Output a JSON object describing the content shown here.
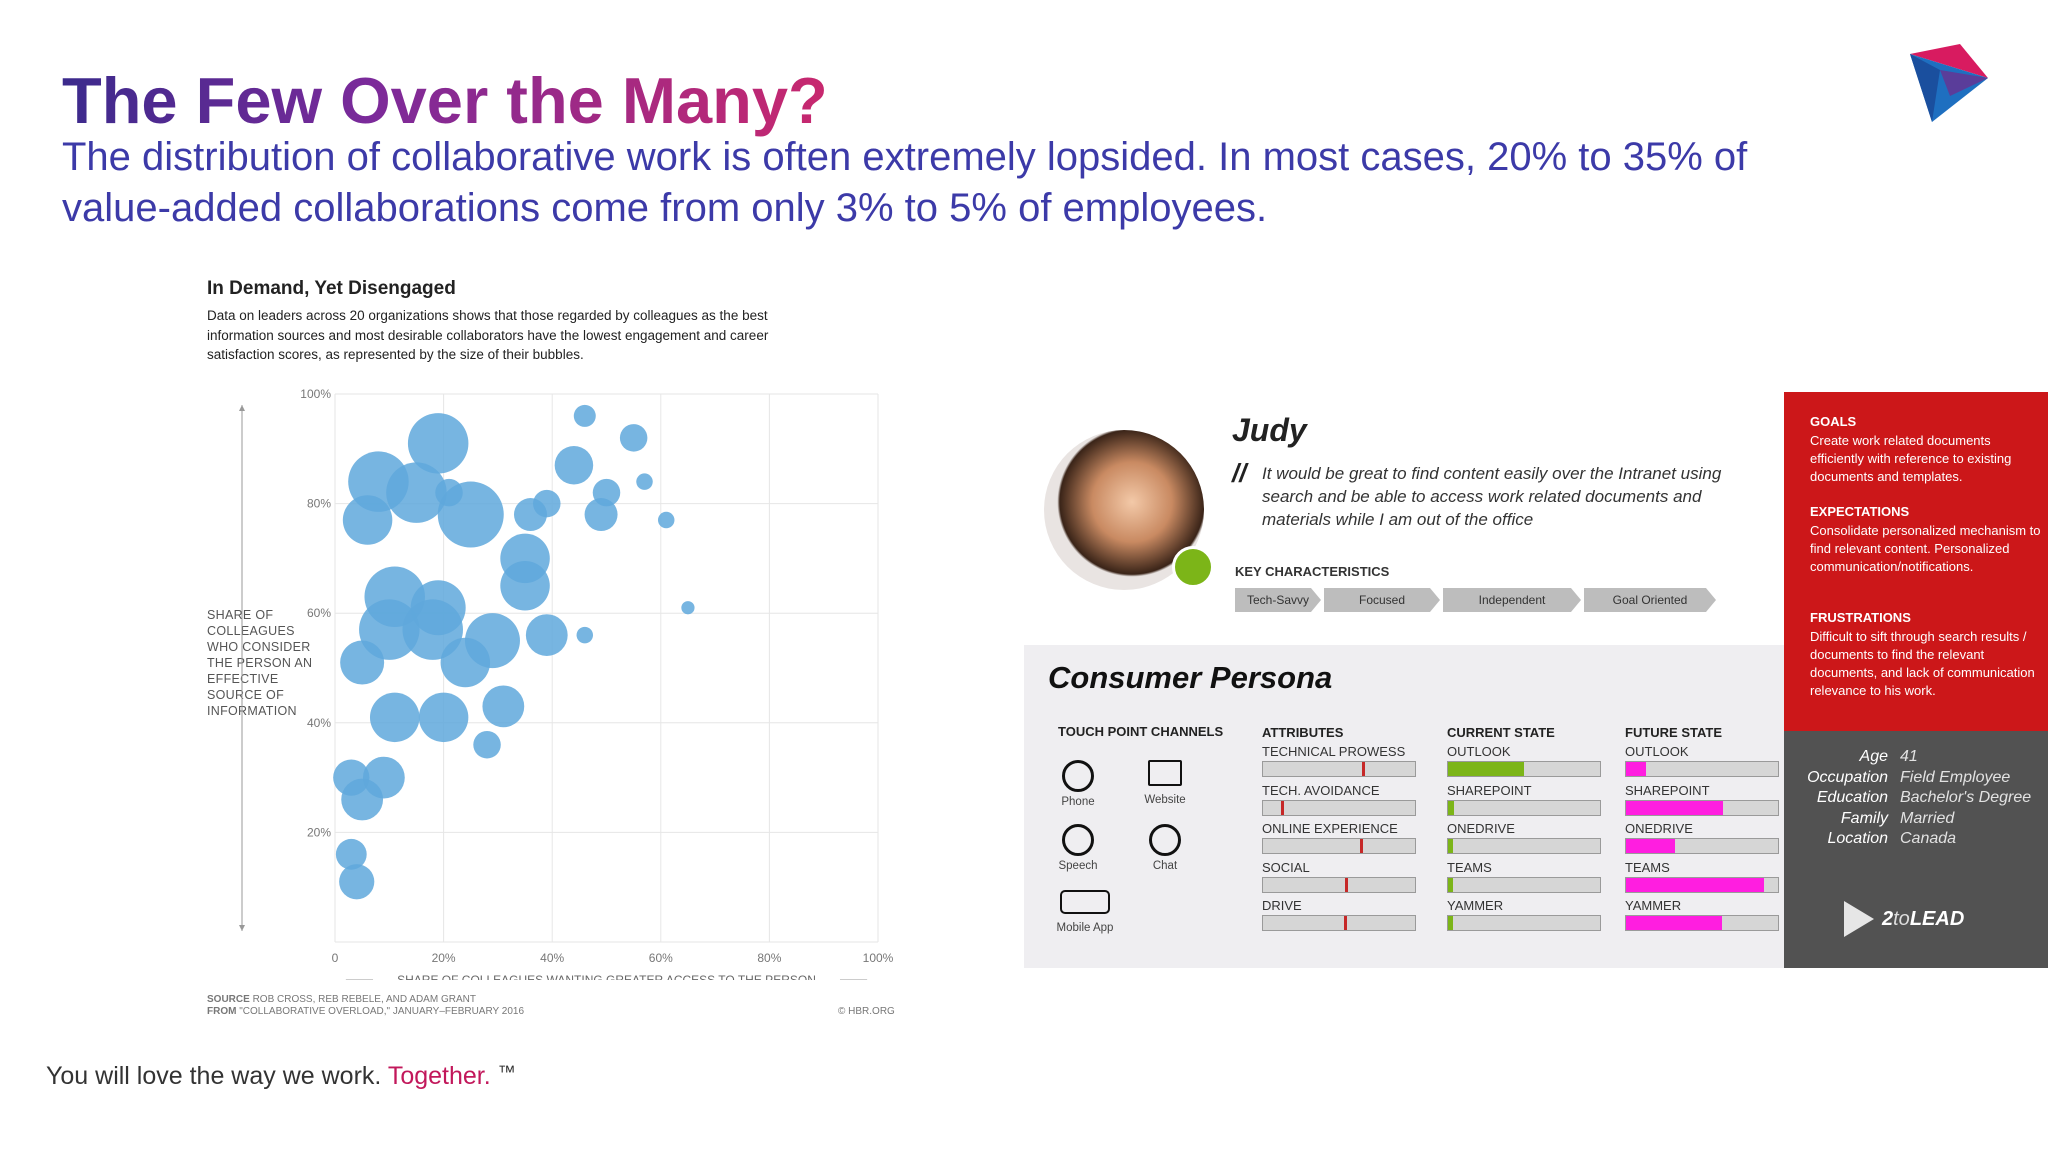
{
  "slide": {
    "title": "The Few Over the Many?",
    "subtitle": "The distribution of collaborative work is often extremely lopsided. In most cases, 20% to 35% of value-added collaborations come from only 3% to 5% of employees.",
    "footer": {
      "text": "You will love the way we work.",
      "accent": "Together.",
      "tm": "™"
    },
    "colors": {
      "title_start": "#3b2a8c",
      "title_end": "#c8286e",
      "subtitle": "#3c3aa8",
      "accent": "#c2185b"
    }
  },
  "chart_header": {
    "title": "In Demand, Yet Disengaged",
    "description": "Data on leaders across 20 organizations shows that those regarded by colleagues as the best information sources and most desirable collaborators have the lowest engagement and career satisfaction scores, as represented by the size of their bubbles.",
    "source_label": "SOURCE",
    "source_text": "ROB CROSS, REB REBELE, AND ADAM GRANT",
    "from_label": "FROM",
    "from_text": "\"COLLABORATIVE OVERLOAD,\" JANUARY–FEBRUARY 2016",
    "credit": "© HBR.ORG"
  },
  "chart_data": {
    "type": "scatter",
    "title": "In Demand, Yet Disengaged",
    "xlabel": "SHARE OF COLLEAGUES WANTING GREATER ACCESS TO THE PERSON",
    "ylabel": "SHARE OF COLLEAGUES WHO CONSIDER THE PERSON AN EFFECTIVE SOURCE OF INFORMATION",
    "xlim": [
      0,
      100
    ],
    "ylim": [
      0,
      100
    ],
    "x_ticks": [
      "0",
      "20%",
      "40%",
      "60%",
      "80%",
      "100%"
    ],
    "y_ticks": [
      "20%",
      "40%",
      "60%",
      "80%",
      "100%"
    ],
    "grid": true,
    "bubble_color": "#5fa8dc",
    "size_meaning": "engagement and career satisfaction",
    "points": [
      {
        "x": 19,
        "y": 91,
        "size": 5.5
      },
      {
        "x": 8,
        "y": 84,
        "size": 5.5
      },
      {
        "x": 15,
        "y": 82,
        "size": 5.5
      },
      {
        "x": 21,
        "y": 82,
        "size": 2.5
      },
      {
        "x": 6,
        "y": 77,
        "size": 4.5
      },
      {
        "x": 25,
        "y": 78,
        "size": 6
      },
      {
        "x": 46,
        "y": 96,
        "size": 2
      },
      {
        "x": 55,
        "y": 92,
        "size": 2.5
      },
      {
        "x": 44,
        "y": 87,
        "size": 3.5
      },
      {
        "x": 57,
        "y": 84,
        "size": 1.5
      },
      {
        "x": 50,
        "y": 82,
        "size": 2.5
      },
      {
        "x": 39,
        "y": 80,
        "size": 2.5
      },
      {
        "x": 36,
        "y": 78,
        "size": 3
      },
      {
        "x": 49,
        "y": 78,
        "size": 3
      },
      {
        "x": 61,
        "y": 77,
        "size": 1.5
      },
      {
        "x": 35,
        "y": 70,
        "size": 4.5
      },
      {
        "x": 35,
        "y": 65,
        "size": 4.5
      },
      {
        "x": 11,
        "y": 63,
        "size": 5.5
      },
      {
        "x": 19,
        "y": 61,
        "size": 5
      },
      {
        "x": 65,
        "y": 61,
        "size": 1.2
      },
      {
        "x": 10,
        "y": 57,
        "size": 5.5
      },
      {
        "x": 18,
        "y": 57,
        "size": 5.5
      },
      {
        "x": 29,
        "y": 55,
        "size": 5
      },
      {
        "x": 39,
        "y": 56,
        "size": 3.8
      },
      {
        "x": 46,
        "y": 56,
        "size": 1.5
      },
      {
        "x": 5,
        "y": 51,
        "size": 4
      },
      {
        "x": 24,
        "y": 51,
        "size": 4.5
      },
      {
        "x": 11,
        "y": 41,
        "size": 4.5
      },
      {
        "x": 20,
        "y": 41,
        "size": 4.5
      },
      {
        "x": 31,
        "y": 43,
        "size": 3.8
      },
      {
        "x": 28,
        "y": 36,
        "size": 2.5
      },
      {
        "x": 3,
        "y": 30,
        "size": 3.3
      },
      {
        "x": 9,
        "y": 30,
        "size": 3.8
      },
      {
        "x": 5,
        "y": 26,
        "size": 3.8
      },
      {
        "x": 3,
        "y": 16,
        "size": 2.8
      },
      {
        "x": 4,
        "y": 11,
        "size": 3.2
      }
    ]
  },
  "persona": {
    "name": "Judy",
    "quote_mark": "//",
    "quote": "It would be great to find content easily over the Intranet using search and be able to access work related documents and materials while I am out of the office",
    "key_characteristics_label": "KEY CHARACTERISTICS",
    "characteristics": [
      "Tech-Savvy",
      "Focused",
      "Independent",
      "Goal Oriented"
    ],
    "section_title": "Consumer Persona",
    "touch_point_label": "TOUCH POINT CHANNELS",
    "touch_points": [
      "Phone",
      "Website",
      "Speech",
      "Chat",
      "Mobile App"
    ],
    "columns": {
      "attributes": "ATTRIBUTES",
      "current": "CURRENT STATE",
      "future": "FUTURE STATE"
    },
    "attributes": [
      {
        "label": "TECHNICAL PROWESS",
        "marker": 0.65
      },
      {
        "label": "TECH. AVOIDANCE",
        "marker": 0.12
      },
      {
        "label": "ONLINE EXPERIENCE",
        "marker": 0.64
      },
      {
        "label": "SOCIAL",
        "marker": 0.54
      },
      {
        "label": "DRIVE",
        "marker": 0.53
      }
    ],
    "current_state": [
      {
        "label": "OUTLOOK",
        "fill": 0.5
      },
      {
        "label": "SHAREPOINT",
        "fill": 0.04
      },
      {
        "label": "ONEDRIVE",
        "fill": 0.03
      },
      {
        "label": "TEAMS",
        "fill": 0.03
      },
      {
        "label": "YAMMER",
        "fill": 0.03
      }
    ],
    "future_state": [
      {
        "label": "OUTLOOK",
        "fill": 0.13
      },
      {
        "label": "SHAREPOINT",
        "fill": 0.64
      },
      {
        "label": "ONEDRIVE",
        "fill": 0.32
      },
      {
        "label": "TEAMS",
        "fill": 0.91
      },
      {
        "label": "YAMMER",
        "fill": 0.63
      }
    ],
    "colors": {
      "current_fill": "#7cb518",
      "future_fill": "#ff1ee0",
      "marker": "#c62828",
      "red_panel": "#cc1719",
      "grey_panel": "#525252"
    },
    "goals_label": "GOALS",
    "goals": "Create work related documents efficiently with reference to existing documents and templates.",
    "expectations_label": "EXPECTATIONS",
    "expectations": "Consolidate personalized mechanism to find relevant content. Personalized communication/notifications.",
    "frustrations_label": "FRUSTRATIONS",
    "frustrations": "Difficult to sift through search results / documents to find the relevant documents, and lack of communication relevance to his work.",
    "profile": [
      {
        "key": "Age",
        "value": "41"
      },
      {
        "key": "Occupation",
        "value": "Field Employee"
      },
      {
        "key": "Education",
        "value": "Bachelor's Degree"
      },
      {
        "key": "Family",
        "value": "Married"
      },
      {
        "key": "Location",
        "value": "Canada"
      }
    ],
    "brand": {
      "prefix": "2",
      "mid": "to",
      "suffix": "LEAD"
    }
  }
}
